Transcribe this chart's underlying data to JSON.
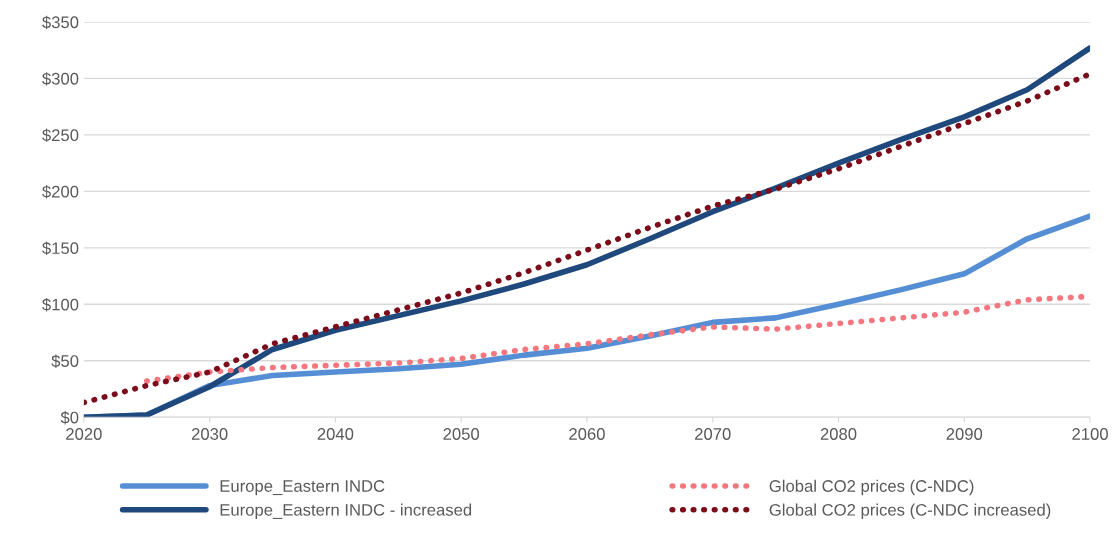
{
  "chart_data": {
    "type": "line",
    "x": [
      2020,
      2025,
      2030,
      2035,
      2040,
      2045,
      2050,
      2055,
      2060,
      2065,
      2070,
      2075,
      2080,
      2085,
      2090,
      2095,
      2100
    ],
    "series": [
      {
        "name": "Europe_Eastern INDC",
        "color": "#558ed5",
        "line_style": "solid",
        "values": [
          0,
          2,
          28,
          37,
          40,
          43,
          47,
          55,
          61,
          72,
          84,
          88,
          100,
          113,
          127,
          158,
          178
        ]
      },
      {
        "name": "Europe_Eastern INDC - increased",
        "color": "#1f497d",
        "line_style": "solid",
        "values": [
          0,
          2,
          27,
          60,
          77,
          90,
          103,
          118,
          135,
          158,
          182,
          203,
          225,
          246,
          266,
          290,
          327
        ]
      },
      {
        "name": "Global CO2 prices (C-NDC)",
        "color": "#f4777f",
        "line_style": "dotted",
        "x": [
          2025,
          2030,
          2035,
          2040,
          2045,
          2050,
          2055,
          2060,
          2065,
          2070,
          2075,
          2080,
          2085,
          2090,
          2095,
          2100
        ],
        "values": [
          32,
          40,
          44,
          46,
          48,
          52,
          60,
          65,
          73,
          80,
          78,
          83,
          88,
          93,
          104,
          107
        ]
      },
      {
        "name": "Global CO2 prices (C-NDC increased)",
        "color": "#7b0c1a",
        "line_style": "dotted",
        "values": [
          13,
          28,
          40,
          65,
          80,
          95,
          110,
          128,
          148,
          168,
          187,
          202,
          220,
          240,
          260,
          280,
          304
        ]
      }
    ],
    "xlim": [
      2020,
      2100
    ],
    "xticks": [
      2020,
      2030,
      2040,
      2050,
      2060,
      2070,
      2080,
      2090,
      2100
    ],
    "ylim": [
      0,
      350
    ],
    "yticks": [
      {
        "value": 0,
        "label": "$0"
      },
      {
        "value": 50,
        "label": "$50"
      },
      {
        "value": 100,
        "label": "$100"
      },
      {
        "value": 150,
        "label": "$150"
      },
      {
        "value": 200,
        "label": "$200"
      },
      {
        "value": 250,
        "label": "$250"
      },
      {
        "value": 300,
        "label": "$300"
      },
      {
        "value": 350,
        "label": "$350"
      }
    ],
    "grid": "y",
    "legend": "bottom"
  }
}
